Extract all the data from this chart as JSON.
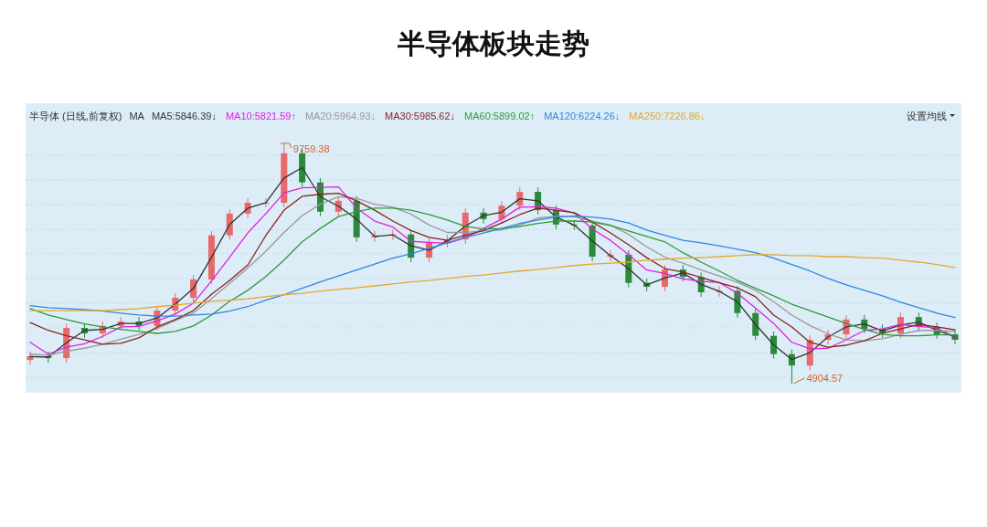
{
  "chart_data": {
    "type": "candlestick",
    "title": "半导体板块走势",
    "subtitle": "半导体 (日线,前复权)",
    "legend_title": "MA",
    "legend": "top left",
    "grid": "y",
    "categories": [
      null,
      null,
      null,
      null,
      null,
      null,
      null,
      null,
      null,
      null,
      null,
      null,
      null,
      null,
      null,
      null,
      null,
      null,
      null,
      null,
      null,
      null,
      null,
      null,
      null,
      null,
      null,
      null,
      null,
      null,
      null,
      null,
      null,
      null,
      null,
      null,
      null,
      null,
      null,
      null,
      null,
      null,
      null,
      null,
      null,
      null,
      null,
      null,
      null,
      null,
      null,
      null
    ],
    "ohlc": [
      [
        5380,
        5550,
        5290,
        5460
      ],
      [
        5460,
        5550,
        5330,
        5420
      ],
      [
        5420,
        6120,
        5330,
        6030
      ],
      [
        6030,
        6120,
        5830,
        5920
      ],
      [
        5920,
        6160,
        5830,
        6070
      ],
      [
        6070,
        6250,
        5980,
        6160
      ],
      [
        6160,
        6250,
        5980,
        6070
      ],
      [
        6070,
        6470,
        5980,
        6380
      ],
      [
        6380,
        6730,
        6290,
        6640
      ],
      [
        6640,
        7100,
        6550,
        7010
      ],
      [
        7010,
        7990,
        6920,
        7900
      ],
      [
        7900,
        8430,
        7810,
        8340
      ],
      [
        8340,
        8650,
        8250,
        8560
      ],
      [
        8560,
        8650,
        8470,
        8560
      ],
      [
        8560,
        9759.38,
        8470,
        9560
      ],
      [
        9560,
        9650,
        8880,
        8970
      ],
      [
        8970,
        9060,
        8290,
        8380
      ],
      [
        8380,
        8690,
        8290,
        8600
      ],
      [
        8600,
        8690,
        7770,
        7860
      ],
      [
        7860,
        7990,
        7770,
        7900
      ],
      [
        7900,
        8010,
        7810,
        7920
      ],
      [
        7920,
        8010,
        7360,
        7450
      ],
      [
        7450,
        7840,
        7360,
        7750
      ],
      [
        7750,
        7910,
        7660,
        7820
      ],
      [
        7820,
        8450,
        7730,
        8360
      ],
      [
        8360,
        8450,
        8140,
        8230
      ],
      [
        8230,
        8590,
        8140,
        8500
      ],
      [
        8500,
        8870,
        8410,
        8780
      ],
      [
        8780,
        8870,
        8320,
        8410
      ],
      [
        8410,
        8500,
        8030,
        8120
      ],
      [
        8120,
        8210,
        8010,
        8100
      ],
      [
        8100,
        8190,
        7380,
        7470
      ],
      [
        7470,
        7600,
        7380,
        7510
      ],
      [
        7510,
        7600,
        6850,
        6940
      ],
      [
        6940,
        7030,
        6770,
        6860
      ],
      [
        6860,
        7300,
        6770,
        7210
      ],
      [
        7210,
        7300,
        6970,
        7060
      ],
      [
        7060,
        7150,
        6660,
        6750
      ],
      [
        6750,
        6870,
        6660,
        6780
      ],
      [
        6780,
        6870,
        6240,
        6330
      ],
      [
        6330,
        6420,
        5780,
        5870
      ],
      [
        5870,
        5960,
        5410,
        5500
      ],
      [
        5500,
        5590,
        4904.57,
        5270
      ],
      [
        5270,
        5880,
        5180,
        5790
      ],
      [
        5790,
        5990,
        5700,
        5900
      ],
      [
        5900,
        6290,
        5810,
        6200
      ],
      [
        6200,
        6290,
        5920,
        6010
      ],
      [
        6010,
        6100,
        5830,
        5920
      ],
      [
        5920,
        6340,
        5830,
        6250
      ],
      [
        6250,
        6340,
        5960,
        6050
      ],
      [
        6050,
        6140,
        5810,
        5900
      ],
      [
        5900,
        5990,
        5700,
        5790
      ]
    ],
    "colors": [
      "#e8696b",
      "#2a8a3a",
      "#e8696b",
      "#2a8a3a",
      "#e8696b",
      "#e8696b",
      "#2a8a3a",
      "#e8696b",
      "#e8696b",
      "#e8696b",
      "#e8696b",
      "#e8696b",
      "#e8696b",
      "#e8696b",
      "#e8696b",
      "#2a8a3a",
      "#2a8a3a",
      "#e8696b",
      "#2a8a3a",
      "#e8696b",
      "#e8696b",
      "#2a8a3a",
      "#e8696b",
      "#e8696b",
      "#e8696b",
      "#2a8a3a",
      "#e8696b",
      "#e8696b",
      "#2a8a3a",
      "#2a8a3a",
      "#2a8a3a",
      "#2a8a3a",
      "#e8696b",
      "#2a8a3a",
      "#2a8a3a",
      "#e8696b",
      "#2a8a3a",
      "#2a8a3a",
      "#e8696b",
      "#2a8a3a",
      "#2a8a3a",
      "#2a8a3a",
      "#2a8a3a",
      "#e8696b",
      "#e8696b",
      "#e8696b",
      "#2a8a3a",
      "#2a8a3a",
      "#e8696b",
      "#2a8a3a",
      "#2a8a3a",
      "#2a8a3a"
    ],
    "series": [
      {
        "name": "MA5:5846.39↓",
        "type": "line",
        "color": "#333333",
        "values": [
          5450,
          5440,
          5730,
          5980,
          6000,
          6120,
          6120,
          6230,
          6510,
          6830,
          7460,
          8120,
          8450,
          8560,
          9060,
          9270,
          8680,
          8490,
          8230,
          7880,
          7910,
          7690,
          7600,
          7790,
          8090,
          8300,
          8370,
          8640,
          8600,
          8270,
          8110,
          7790,
          7490,
          7230,
          6900,
          7040,
          7140,
          6910,
          6770,
          6560,
          6100,
          5690,
          5390,
          5530,
          5850,
          6050,
          6110,
          5970,
          6090,
          6150,
          5980,
          5850
        ]
      },
      {
        "name": "MA10:5821.59↑",
        "type": "line",
        "color": "#e020e0",
        "values": [
          5740,
          5500,
          5640,
          5710,
          5860,
          6050,
          6060,
          6170,
          6310,
          6530,
          6980,
          7460,
          7950,
          8340,
          8760,
          8860,
          8870,
          8880,
          8450,
          8190,
          8070,
          7780,
          7760,
          7740,
          7850,
          8040,
          8230,
          8470,
          8480,
          8450,
          8350,
          8030,
          7800,
          7510,
          7200,
          7130,
          7020,
          6970,
          6950,
          6730,
          6430,
          6120,
          5740,
          5610,
          5620,
          5790,
          5980,
          6010,
          6100,
          6060,
          6030,
          5850
        ]
      },
      {
        "name": "MA20:5964.93↓",
        "type": "line",
        "color": "#999999",
        "values": [
          5500,
          5480,
          5560,
          5620,
          5700,
          5800,
          5900,
          6020,
          6180,
          6330,
          6620,
          6930,
          7240,
          7580,
          7960,
          8300,
          8530,
          8680,
          8650,
          8530,
          8470,
          8330,
          8110,
          7960,
          7960,
          7990,
          8010,
          8110,
          8250,
          8290,
          8280,
          8190,
          8110,
          7920,
          7670,
          7460,
          7340,
          7200,
          7080,
          6950,
          6790,
          6560,
          6290,
          6080,
          5910,
          5790,
          5770,
          5810,
          5900,
          5980,
          5980,
          5960
        ]
      },
      {
        "name": "MA30:5985.62↓",
        "type": "line",
        "color": "#8b2020",
        "values": [
          6140,
          5980,
          5870,
          5790,
          5700,
          5720,
          5830,
          6050,
          6200,
          6380,
          6710,
          6990,
          7300,
          7900,
          8410,
          8690,
          8730,
          8750,
          8600,
          8410,
          8190,
          8000,
          7860,
          7800,
          7900,
          8000,
          8150,
          8320,
          8450,
          8410,
          8360,
          8170,
          7950,
          7710,
          7450,
          7230,
          7160,
          7050,
          6940,
          6840,
          6660,
          6290,
          6050,
          5740,
          5640,
          5680,
          5770,
          5920,
          6010,
          6100,
          6050,
          5990
        ]
      },
      {
        "name": "MA60:5899.02↑",
        "type": "line",
        "color": "#2e9a3a",
        "values": [
          6420,
          6290,
          6200,
          6110,
          6050,
          6000,
          5960,
          5920,
          5960,
          6070,
          6290,
          6570,
          6790,
          7070,
          7400,
          7770,
          8040,
          8280,
          8380,
          8450,
          8450,
          8410,
          8320,
          8210,
          8080,
          8030,
          8040,
          8080,
          8140,
          8190,
          8190,
          8170,
          8100,
          7990,
          7880,
          7770,
          7550,
          7360,
          7180,
          6990,
          6830,
          6680,
          6510,
          6380,
          6250,
          6120,
          6000,
          5900,
          5870,
          5870,
          5890,
          5890
        ]
      },
      {
        "name": "MA120:6224.26↓",
        "type": "line",
        "color": "#2f86e0",
        "values": [
          6480,
          6440,
          6420,
          6400,
          6370,
          6330,
          6290,
          6270,
          6270,
          6290,
          6310,
          6370,
          6460,
          6590,
          6700,
          6830,
          6960,
          7080,
          7200,
          7320,
          7440,
          7530,
          7640,
          7750,
          7860,
          7950,
          8040,
          8140,
          8210,
          8270,
          8290,
          8270,
          8230,
          8150,
          8010,
          7900,
          7800,
          7750,
          7690,
          7620,
          7550,
          7440,
          7310,
          7180,
          7030,
          6900,
          6790,
          6680,
          6550,
          6440,
          6330,
          6240
        ]
      },
      {
        "name": "MA250:7226.86↓",
        "type": "line",
        "color": "#e6a828",
        "values": [
          6380,
          6380,
          6380,
          6380,
          6380,
          6400,
          6420,
          6460,
          6490,
          6530,
          6570,
          6590,
          6620,
          6660,
          6700,
          6730,
          6770,
          6810,
          6840,
          6880,
          6920,
          6960,
          6990,
          7030,
          7070,
          7100,
          7140,
          7180,
          7210,
          7250,
          7290,
          7320,
          7340,
          7360,
          7400,
          7420,
          7440,
          7450,
          7470,
          7490,
          7510,
          7510,
          7490,
          7490,
          7470,
          7470,
          7450,
          7440,
          7400,
          7360,
          7310,
          7250
        ]
      }
    ],
    "yticks": [
      {
        "value": 5030,
        "label": null
      },
      {
        "value": 5530,
        "label": null
      },
      {
        "value": 6030,
        "label": null
      },
      {
        "value": 6530,
        "label": null
      },
      {
        "value": 7030,
        "label": null
      },
      {
        "value": 7530,
        "label": null
      },
      {
        "value": 8020,
        "label": null
      },
      {
        "value": 8520,
        "label": null
      },
      {
        "value": 9020,
        "label": null
      },
      {
        "value": 9520,
        "label": null
      }
    ],
    "annotations": [
      "9759.38",
      "4904.57",
      "设置均线"
    ]
  }
}
